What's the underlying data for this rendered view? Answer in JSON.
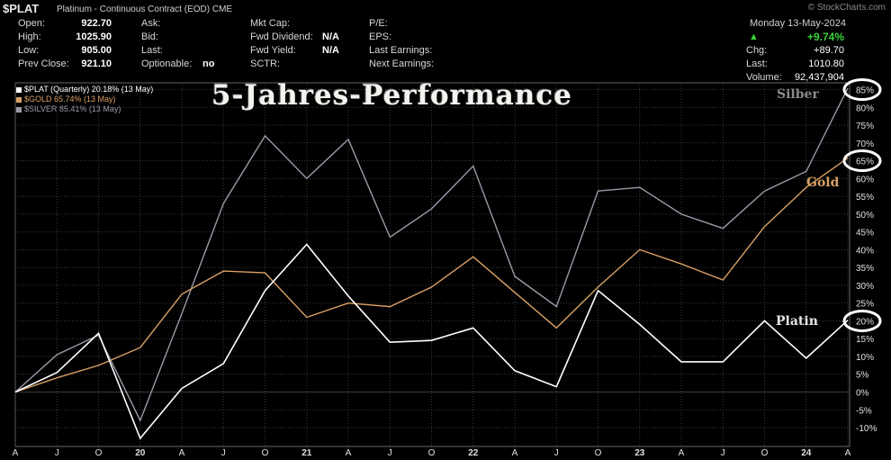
{
  "header": {
    "symbol": "$PLAT",
    "description": "Platinum - Continuous Contract (EOD)",
    "exchange": "CME",
    "watermark": "© StockCharts.com",
    "date": "Monday 13-May-2024"
  },
  "quote": {
    "open_label": "Open:",
    "open": "922.70",
    "high_label": "High:",
    "high": "1025.90",
    "low_label": "Low:",
    "low": "905.00",
    "prev_label": "Prev Close:",
    "prev": "921.10",
    "ask_label": "Ask:",
    "bid_label": "Bid:",
    "last_label": "Last:",
    "optionable_label": "Optionable:",
    "optionable": "no",
    "mktcap_label": "Mkt Cap:",
    "fwddiv_label": "Fwd Dividend:",
    "fwddiv": "N/A",
    "fwdyield_label": "Fwd Yield:",
    "fwdyield": "N/A",
    "sctr_label": "SCTR:",
    "pe_label": "P/E:",
    "eps_label": "EPS:",
    "lastearn_label": "Last Earnings:",
    "nextearn_label": "Next Earnings:",
    "chg_pct": "+9.74%",
    "chg_label": "Chg:",
    "chg": "+89.70",
    "last2_label": "Last:",
    "last2": "1010.80",
    "volume_label": "Volume:",
    "volume": "92,437,904"
  },
  "legend": [
    {
      "text": "$PLAT (Quarterly) 20.18% (13 May)",
      "color": "#ffffff"
    },
    {
      "text": "$GOLD 65.74% (13 May)",
      "color": "#d9a066"
    },
    {
      "text": "$SILVER 85.41% (13 May)",
      "color": "#9a9aa8"
    }
  ],
  "headline": "5-Jahres-Performance",
  "series_labels": {
    "silber": "Silber",
    "gold": "Gold",
    "platin": "Platin"
  },
  "circled_ticks": [
    "85%",
    "65%",
    "20%"
  ],
  "colors": {
    "platin": "#ffffff",
    "gold": "#d9a066",
    "silber": "#9a9aa8",
    "grid": "#3a3a3a",
    "circle": "#ffffff"
  },
  "chart_data": {
    "type": "line",
    "x": [
      "A",
      "J",
      "O",
      "20",
      "A",
      "J",
      "O",
      "21",
      "A",
      "J",
      "O",
      "22",
      "A",
      "J",
      "O",
      "23",
      "A",
      "J",
      "O",
      "24",
      "A"
    ],
    "series": [
      {
        "name": "$PLAT (Quarterly)",
        "values": [
          0,
          5.5,
          16.5,
          -13,
          1,
          8,
          28.5,
          41.5,
          27,
          14,
          14.5,
          18,
          6,
          1.5,
          28.5,
          19,
          8.5,
          8.5,
          20,
          9.5,
          20.18
        ]
      },
      {
        "name": "$GOLD",
        "values": [
          0,
          4,
          7.5,
          12.5,
          27.5,
          34,
          33.5,
          21,
          25,
          24,
          29.5,
          38,
          28,
          18,
          29.5,
          40,
          36,
          31.5,
          46.5,
          57.5,
          65.74
        ]
      },
      {
        "name": "$SILVER",
        "values": [
          0,
          10.5,
          16,
          -8,
          22,
          53,
          72,
          60,
          71,
          43.5,
          51.5,
          63.5,
          32.5,
          24,
          56.5,
          57.5,
          50,
          46,
          56.5,
          62,
          85.41
        ]
      }
    ],
    "yticks": [
      -10,
      -5,
      0,
      5,
      10,
      15,
      20,
      25,
      30,
      35,
      40,
      45,
      50,
      55,
      60,
      65,
      70,
      75,
      80,
      85
    ],
    "ylim": [
      -13,
      91
    ],
    "y_unit": "%",
    "grid": true,
    "legend_position": "top-left"
  }
}
